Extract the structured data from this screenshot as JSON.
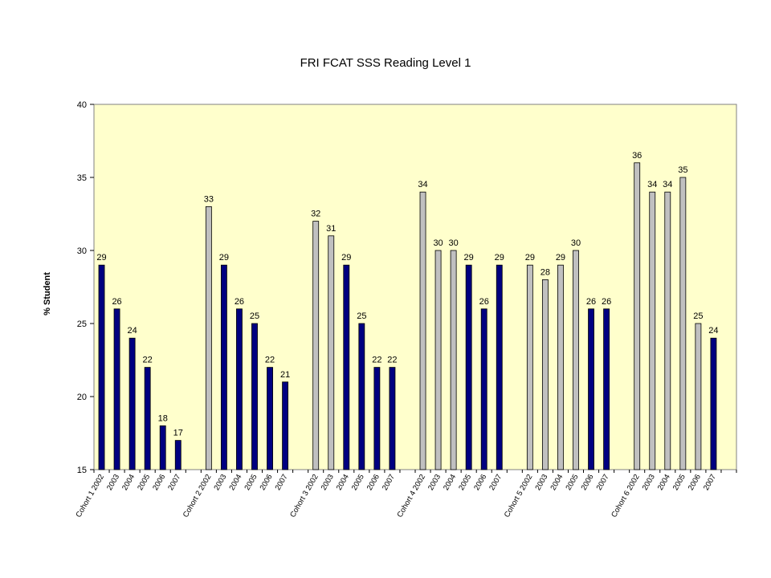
{
  "chart_data": {
    "type": "bar",
    "title": "FRI FCAT SSS Reading Level 1",
    "xlabel": "",
    "ylabel": "% Student",
    "ylim": [
      15,
      40
    ],
    "yticks": [
      15,
      20,
      25,
      30,
      35,
      40
    ],
    "grid": false,
    "legend": "none",
    "colors": {
      "plot_bg": "#FFFFCC",
      "dark_bar": "#000080",
      "light_bar": "#C0C0C0"
    },
    "categories": [
      "Cohort 1 2002",
      "2003",
      "2004",
      "2005",
      "2006",
      "2007",
      "Cohort 2 2002",
      "2003",
      "2004",
      "2005",
      "2006",
      "2007",
      "Cohort 3 2002",
      "2003",
      "2004",
      "2005",
      "2006",
      "2007",
      "Cohort 4 2002",
      "2003",
      "2004",
      "2005",
      "2006",
      "2007",
      "Cohort 5 2002",
      "2003",
      "2004",
      "2005",
      "2006",
      "2007",
      "Cohort 6 2002",
      "2003",
      "2004",
      "2005",
      "2006",
      "2007"
    ],
    "values": [
      29,
      26,
      24,
      22,
      18,
      17,
      33,
      29,
      26,
      25,
      22,
      21,
      32,
      31,
      29,
      25,
      22,
      22,
      34,
      30,
      30,
      29,
      26,
      29,
      29,
      28,
      29,
      30,
      26,
      26,
      36,
      34,
      34,
      35,
      25,
      24
    ],
    "bar_colors": [
      "dark",
      "dark",
      "dark",
      "dark",
      "dark",
      "dark",
      "light",
      "dark",
      "dark",
      "dark",
      "dark",
      "dark",
      "light",
      "light",
      "dark",
      "dark",
      "dark",
      "dark",
      "light",
      "light",
      "light",
      "dark",
      "dark",
      "dark",
      "light",
      "light",
      "light",
      "light",
      "dark",
      "dark",
      "light",
      "light",
      "light",
      "light",
      "light",
      "dark"
    ]
  }
}
